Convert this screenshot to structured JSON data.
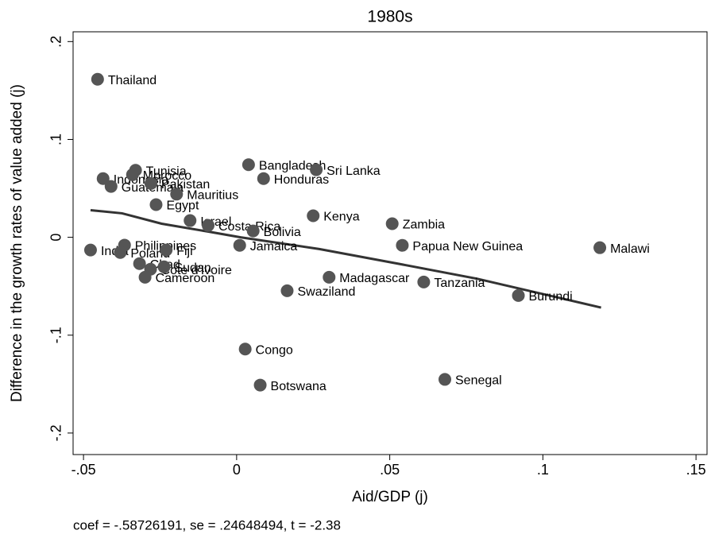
{
  "chart_data": {
    "type": "scatter",
    "title": "1980s",
    "x_label": "Aid/GDP (j)",
    "y_label": "Difference in the growth rates of value added (j)",
    "note": "coef = -.58726191, se = .24648494, t = -2.38",
    "color": "#555555",
    "line_color": "#333333",
    "xlim": [
      -0.0534,
      0.1536
    ],
    "ylim": [
      -0.222,
      0.21
    ],
    "xticks": [
      {
        "value": -0.05,
        "label": "-.05"
      },
      0,
      {
        "value": 0.05,
        "label": ".05"
      },
      {
        "value": 0.1,
        "label": ".1"
      },
      {
        "value": 0.15,
        "label": ".15"
      }
    ],
    "yticks": [
      {
        "value": -0.2,
        "label": "-.2"
      },
      {
        "value": -0.1,
        "label": "-.1"
      },
      0,
      {
        "value": 0.1,
        "label": ".1"
      },
      {
        "value": 0.2,
        "label": ".2"
      }
    ],
    "point_labels": [
      "Thailand",
      "Tunisia",
      "Indonesia",
      "Guatemala",
      "Morocco",
      "Pakistan",
      "Mauritius",
      "Egypt",
      "Israel",
      "Costa Rica",
      "Bolivia",
      "Bangladesh",
      "Sri Lanka",
      "Honduras",
      "Kenya",
      "Zambia",
      "Papua New Guinea",
      "Malawi",
      "Jamaica",
      "India",
      "Philippines",
      "Poland",
      "Fiji",
      "Chad",
      "Cote d'Ivoire",
      "Sudan",
      "Cameroon",
      "Madagascar",
      "Tanzania",
      "Swaziland",
      "Burundi",
      "Congo",
      "Botswana",
      "Senegal"
    ],
    "x": [
      -0.0454,
      -0.033,
      -0.0436,
      -0.041,
      -0.034,
      -0.028,
      -0.0196,
      -0.0263,
      -0.0152,
      -0.0093,
      0.0054,
      0.0039,
      0.026,
      0.0088,
      0.025,
      0.0508,
      0.0541,
      0.1186,
      0.001,
      -0.0477,
      -0.0366,
      -0.038,
      -0.023,
      -0.0317,
      -0.0281,
      -0.0237,
      -0.0299,
      0.0302,
      0.0611,
      0.0165,
      0.092,
      0.0028,
      0.0077,
      0.068
    ],
    "y": [
      0.1615,
      0.0685,
      0.06,
      0.052,
      0.064,
      0.055,
      0.0441,
      0.0334,
      0.0171,
      0.0122,
      0.0065,
      0.0742,
      0.069,
      0.06,
      0.022,
      0.0139,
      -0.0082,
      -0.0106,
      -0.0082,
      -0.013,
      -0.008,
      -0.0155,
      -0.013,
      -0.0269,
      -0.0326,
      -0.0302,
      -0.0408,
      -0.0408,
      -0.0457,
      -0.0546,
      -0.0595,
      -0.1142,
      -0.151,
      -0.1452
    ],
    "fit": {
      "x": [
        -0.0477,
        -0.0374,
        -0.0245,
        -0.009,
        0.0013,
        0.027,
        0.0528,
        0.0786,
        0.119
      ],
      "y": [
        0.0277,
        0.0245,
        0.0139,
        0.0057,
        0,
        -0.012,
        -0.027,
        -0.0424,
        -0.0718
      ]
    }
  }
}
